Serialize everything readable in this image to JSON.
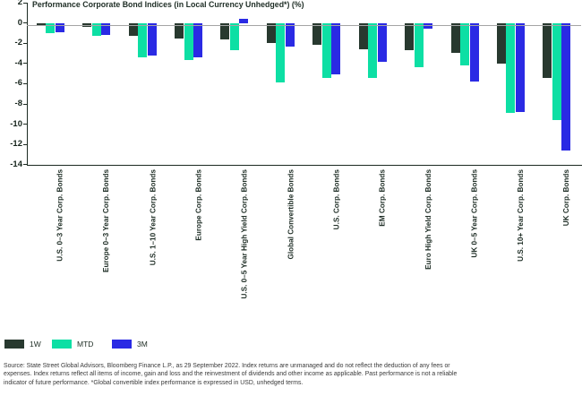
{
  "chart_data": {
    "type": "bar",
    "title": "Performance Corporate Bond Indices (in Local Currency Unhedged*) (%)",
    "categories": [
      "U.S. 0–3 Year Corp. Bonds",
      "Europe 0–3 Year Corp. Bonds",
      "U.S. 1–10 Year Corp. Bonds",
      "Europe Corp. Bonds",
      "U.S. 0–5 Year High Yield Corp. Bonds",
      "Global Convertible Bonds",
      "U.S. Corp. Bonds",
      "EM Corp. Bonds",
      "Euro High Yield Corp. Bonds",
      "UK 0–5 Year Corp. Bonds",
      "U.S. 10+ Year Corp. Bonds",
      "UK Corp. Bonds"
    ],
    "series": [
      {
        "name": "1W",
        "color": "#28392f",
        "values": [
          -0.2,
          -0.4,
          -1.3,
          -1.5,
          -1.6,
          -2.0,
          -2.2,
          -2.6,
          -2.7,
          -3.0,
          -4.0,
          -5.4
        ]
      },
      {
        "name": "MTD",
        "color": "#0ddfa4",
        "values": [
          -1.0,
          -1.3,
          -3.4,
          -3.7,
          -2.7,
          -5.9,
          -5.4,
          -5.4,
          -4.4,
          -4.2,
          -8.9,
          -9.6
        ]
      },
      {
        "name": "3M",
        "color": "#2a2ae4",
        "values": [
          -0.9,
          -1.2,
          -3.2,
          -3.4,
          0.4,
          -2.3,
          -5.1,
          -3.8,
          -0.6,
          -5.8,
          -8.8,
          -12.6
        ]
      }
    ],
    "ylabel": "",
    "xlabel": "",
    "ylim": [
      -14,
      2
    ],
    "yticks": [
      2,
      0,
      -2,
      -4,
      -6,
      -8,
      -10,
      -12,
      -14
    ],
    "grid": false,
    "legend_position": "bottom-left",
    "zero_line_color": "#a5a5a5",
    "axis_color": "#1c2a22"
  },
  "footer": {
    "lines": [
      "Source: State Street Global Advisors, Bloomberg Finance L.P., as 29 September 2022. Index returns are unmanaged and do not reflect the deduction of any fees or",
      "expenses. Index returns reflect all items of income, gain and loss and the reinvestment of dividends and other income as applicable. Past performance is not a reliable",
      "indicator of future performance. *Global convertible index performance is expressed in USD, unhedged terms."
    ]
  }
}
